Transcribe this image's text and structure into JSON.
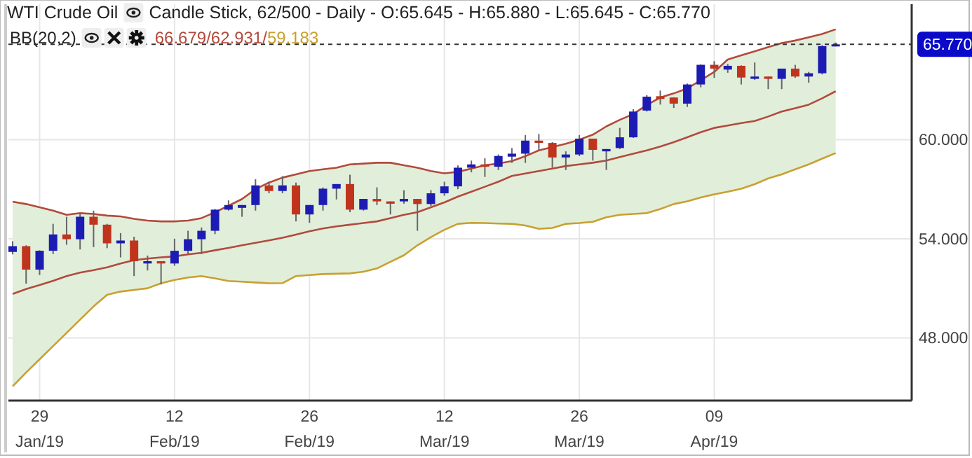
{
  "chart_data": {
    "type": "candlestick",
    "title": "WTI Crude Oil",
    "subtitle": "Candle Stick, 62/500 - Daily - O:65.645 - H:65.880 - L:65.645 - C:65.770",
    "annotations": [
      "BB(20,2)",
      "66.679/62.931/59.183"
    ],
    "categories": [
      null,
      null,
      "29\nJan/19",
      null,
      null,
      null,
      null,
      null,
      null,
      null,
      null,
      null,
      "12\nFeb/19",
      null,
      null,
      null,
      null,
      null,
      null,
      null,
      null,
      null,
      "26\nFeb/19",
      null,
      null,
      null,
      null,
      null,
      null,
      null,
      null,
      null,
      "12\nMar/19",
      null,
      null,
      null,
      null,
      null,
      null,
      null,
      null,
      null,
      "26\nMar/19",
      null,
      null,
      null,
      null,
      null,
      null,
      null,
      null,
      null,
      "09\nApr/19",
      null,
      null,
      null,
      null,
      null,
      null,
      null,
      null,
      null
    ],
    "ylim": [
      44.2,
      68.2
    ],
    "yticks": [
      {
        "value": 48,
        "label": "48.000"
      },
      {
        "value": 54,
        "label": "54.000"
      },
      {
        "value": 60,
        "label": "60.000"
      }
    ],
    "grid": true,
    "series": [
      {
        "ohlc": [
          [
            53.2,
            53.85,
            53.05,
            53.55
          ],
          [
            53.55,
            53.6,
            51.28,
            52.13
          ],
          [
            52.13,
            53.3,
            51.8,
            53.27
          ],
          [
            53.27,
            54.9,
            53.07,
            54.26
          ],
          [
            54.26,
            55.33,
            53.63,
            53.97
          ],
          [
            53.97,
            55.53,
            53.35,
            55.33
          ],
          [
            55.33,
            55.7,
            53.49,
            54.85
          ],
          [
            54.85,
            54.9,
            53.43,
            53.72
          ],
          [
            53.72,
            54.34,
            52.87,
            53.89
          ],
          [
            53.89,
            54.12,
            51.74,
            52.64
          ],
          [
            52.5,
            52.98,
            52.08,
            52.64
          ],
          [
            52.64,
            52.64,
            51.23,
            52.5
          ],
          [
            52.5,
            54.0,
            52.36,
            53.27
          ],
          [
            53.27,
            54.48,
            53.07,
            53.97
          ],
          [
            53.97,
            54.68,
            53.07,
            54.48
          ],
          [
            54.48,
            55.8,
            54.28,
            55.76
          ],
          [
            55.76,
            56.32,
            55.7,
            56.04
          ],
          [
            55.87,
            56.04,
            55.33,
            56.04
          ],
          [
            56.04,
            57.6,
            55.7,
            57.23
          ],
          [
            57.23,
            57.45,
            56.75,
            56.89
          ],
          [
            56.89,
            57.79,
            56.75,
            57.23
          ],
          [
            57.23,
            57.4,
            55.05,
            55.47
          ],
          [
            55.47,
            56.04,
            54.96,
            56.04
          ],
          [
            56.04,
            57.1,
            55.7,
            57.03
          ],
          [
            57.03,
            57.31,
            56.38,
            57.31
          ],
          [
            57.31,
            57.88,
            55.61,
            55.76
          ],
          [
            55.76,
            56.41,
            55.7,
            56.41
          ],
          [
            56.41,
            57.11,
            56.04,
            56.26
          ],
          [
            56.26,
            56.26,
            55.47,
            56.12
          ],
          [
            56.26,
            56.94,
            56.12,
            56.41
          ],
          [
            56.41,
            56.41,
            54.48,
            56.1
          ],
          [
            56.1,
            56.94,
            55.98,
            56.75
          ],
          [
            56.75,
            57.45,
            56.6,
            57.17
          ],
          [
            57.17,
            58.44,
            57.0,
            58.3
          ],
          [
            58.3,
            58.73,
            58.02,
            58.5
          ],
          [
            58.5,
            58.87,
            57.74,
            58.36
          ],
          [
            58.36,
            59.1,
            58.16,
            59.01
          ],
          [
            58.97,
            59.49,
            58.59,
            59.15
          ],
          [
            59.15,
            60.28,
            58.59,
            59.94
          ],
          [
            59.94,
            60.34,
            59.38,
            59.8
          ],
          [
            59.8,
            59.85,
            58.3,
            58.92
          ],
          [
            58.92,
            59.29,
            58.16,
            59.1
          ],
          [
            59.1,
            60.28,
            59.0,
            60.06
          ],
          [
            60.06,
            60.06,
            58.73,
            59.38
          ],
          [
            59.29,
            59.43,
            58.16,
            59.43
          ],
          [
            59.49,
            60.71,
            59.43,
            60.14
          ],
          [
            60.14,
            61.84,
            60.1,
            61.7
          ],
          [
            61.76,
            62.69,
            61.7,
            62.6
          ],
          [
            62.63,
            62.97,
            62.12,
            62.46
          ],
          [
            62.55,
            62.55,
            61.92,
            62.18
          ],
          [
            62.18,
            63.4,
            61.98,
            63.34
          ],
          [
            63.34,
            64.55,
            63.17,
            64.53
          ],
          [
            64.53,
            64.75,
            63.74,
            64.3
          ],
          [
            64.24,
            64.58,
            64.05,
            64.47
          ],
          [
            64.47,
            64.5,
            63.34,
            63.76
          ],
          [
            63.68,
            64.67,
            63.62,
            63.82
          ],
          [
            63.82,
            63.82,
            63.06,
            63.68
          ],
          [
            63.68,
            64.3,
            63.06,
            64.3
          ],
          [
            64.3,
            64.53,
            63.74,
            63.82
          ],
          [
            63.82,
            64.1,
            63.45,
            64.02
          ],
          [
            64.02,
            65.72,
            63.95,
            65.66
          ],
          [
            65.645,
            65.88,
            65.645,
            65.77
          ]
        ],
        "colors": [
          "#1c1cb4",
          "#c0341d",
          "#1c1cb4",
          "#1c1cb4",
          "#c0341d",
          "#1c1cb4",
          "#c0341d",
          "#c0341d",
          "#1c1cb4",
          "#c0341d",
          "#1c1cb4",
          "#c0341d",
          "#1c1cb4",
          "#1c1cb4",
          "#1c1cb4",
          "#1c1cb4",
          "#1c1cb4",
          "#1c1cb4",
          "#1c1cb4",
          "#c0341d",
          "#1c1cb4",
          "#c0341d",
          "#1c1cb4",
          "#1c1cb4",
          "#1c1cb4",
          "#c0341d",
          "#1c1cb4",
          "#c0341d",
          "#c0341d",
          "#1c1cb4",
          "#c0341d",
          "#1c1cb4",
          "#1c1cb4",
          "#1c1cb4",
          "#1c1cb4",
          "#c0341d",
          "#1c1cb4",
          "#1c1cb4",
          "#1c1cb4",
          "#c0341d",
          "#c0341d",
          "#1c1cb4",
          "#1c1cb4",
          "#c0341d",
          "#1c1cb4",
          "#1c1cb4",
          "#1c1cb4",
          "#1c1cb4",
          "#c0341d",
          "#c0341d",
          "#1c1cb4",
          "#1c1cb4",
          "#c0341d",
          "#1c1cb4",
          "#c0341d",
          "#1c1cb4",
          "#c0341d",
          "#1c1cb4",
          "#c0341d",
          "#1c1cb4",
          "#1c1cb4",
          "#1c1cb4"
        ]
      },
      {
        "type": "line",
        "color": "#b24a3c",
        "values": [
          56.24,
          56.1,
          55.9,
          55.7,
          55.45,
          55.55,
          55.5,
          55.4,
          55.35,
          55.2,
          55.1,
          55.05,
          55.05,
          55.1,
          55.25,
          55.6,
          56.0,
          56.4,
          57.0,
          57.4,
          57.7,
          57.9,
          58.1,
          58.2,
          58.3,
          58.5,
          58.55,
          58.6,
          58.6,
          58.45,
          58.3,
          58.1,
          57.96,
          58.05,
          58.25,
          58.45,
          58.55,
          58.7,
          59.0,
          59.35,
          59.55,
          59.75,
          60.0,
          60.3,
          60.8,
          61.2,
          61.55,
          62.1,
          62.55,
          62.8,
          63.1,
          63.6,
          64.1,
          64.85,
          65.1,
          65.35,
          65.6,
          65.85,
          66.0,
          66.2,
          66.4,
          66.679
        ]
      },
      {
        "type": "line",
        "color": "#b24a3c",
        "values": [
          50.66,
          50.95,
          51.2,
          51.45,
          51.74,
          51.95,
          52.1,
          52.27,
          52.5,
          52.7,
          52.8,
          52.87,
          52.93,
          53.05,
          53.15,
          53.3,
          53.44,
          53.6,
          53.75,
          53.9,
          54.06,
          54.25,
          54.45,
          54.62,
          54.75,
          54.85,
          54.95,
          55.05,
          55.25,
          55.45,
          55.61,
          55.9,
          56.2,
          56.55,
          56.85,
          57.15,
          57.45,
          57.8,
          57.95,
          58.1,
          58.25,
          58.4,
          58.5,
          58.6,
          58.73,
          58.95,
          59.15,
          59.35,
          59.58,
          59.85,
          60.14,
          60.45,
          60.71,
          60.85,
          61.0,
          61.13,
          61.4,
          61.7,
          61.9,
          62.12,
          62.5,
          62.931
        ],
        "upper": [
          56.24,
          56.1,
          55.9,
          55.7,
          55.45,
          55.55,
          55.5,
          55.4,
          55.35,
          55.2,
          55.1,
          55.05,
          55.05,
          55.1,
          55.25,
          55.6,
          56.0,
          56.4,
          57.0,
          57.4,
          57.7,
          57.9,
          58.1,
          58.2,
          58.3,
          58.5,
          58.55,
          58.6,
          58.6,
          58.45,
          58.3,
          58.1,
          57.96,
          58.05,
          58.25,
          58.45,
          58.55,
          58.7,
          59.0,
          59.35,
          59.55,
          59.75,
          60.0,
          60.3,
          60.8,
          61.2,
          61.55,
          62.1,
          62.55,
          62.8,
          63.1,
          63.6,
          64.1,
          64.85,
          65.1,
          65.35,
          65.6,
          65.85,
          66.0,
          66.2,
          66.4,
          66.679
        ],
        "lower": [
          45.06,
          45.9,
          46.7,
          47.5,
          48.3,
          49.1,
          49.9,
          50.6,
          50.8,
          50.9,
          51.0,
          51.3,
          51.5,
          51.65,
          51.74,
          51.6,
          51.44,
          51.4,
          51.35,
          51.3,
          51.31,
          51.74,
          51.8,
          51.86,
          51.88,
          51.9,
          52.0,
          52.2,
          52.6,
          53.0,
          53.6,
          54.1,
          54.54,
          54.9,
          54.96,
          54.95,
          54.92,
          54.9,
          54.8,
          54.6,
          54.65,
          54.9,
          54.95,
          55.02,
          55.3,
          55.45,
          55.5,
          55.55,
          55.8,
          56.1,
          56.26,
          56.5,
          56.69,
          56.85,
          57.03,
          57.3,
          57.65,
          57.9,
          58.2,
          58.5,
          58.85,
          59.183
        ]
      },
      {
        "type": "line",
        "color": "#c9a030",
        "values": [
          45.06,
          45.9,
          46.7,
          47.5,
          48.3,
          49.1,
          49.9,
          50.6,
          50.8,
          50.9,
          51.0,
          51.3,
          51.5,
          51.65,
          51.74,
          51.6,
          51.44,
          51.4,
          51.35,
          51.3,
          51.31,
          51.74,
          51.8,
          51.86,
          51.88,
          51.9,
          52.0,
          52.2,
          52.6,
          53.0,
          53.6,
          54.1,
          54.54,
          54.9,
          54.96,
          54.95,
          54.92,
          54.9,
          54.8,
          54.6,
          54.65,
          54.9,
          54.95,
          55.02,
          55.3,
          55.45,
          55.5,
          55.55,
          55.8,
          56.1,
          56.26,
          56.5,
          56.69,
          56.85,
          57.03,
          57.3,
          57.65,
          57.9,
          58.2,
          58.5,
          58.85,
          59.183
        ]
      }
    ],
    "ref_lines": [
      {
        "axis": "y",
        "value": 65.77,
        "label": "65.770",
        "color": "#333333",
        "line_style": "dashed"
      }
    ]
  }
}
